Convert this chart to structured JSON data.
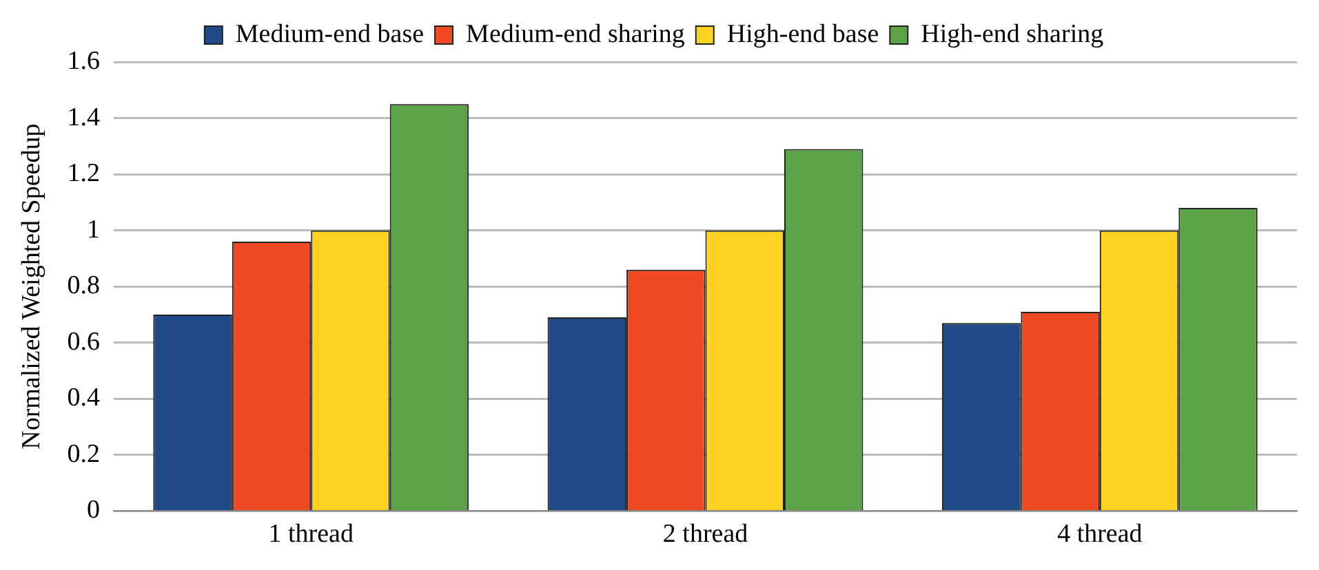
{
  "chart_data": {
    "type": "bar",
    "ylabel": "Normalized Weighted Speedup",
    "categories": [
      "1 thread",
      "2 thread",
      "4 thread"
    ],
    "series": [
      {
        "name": "Medium-end base",
        "color": "#1f4a87",
        "values": [
          0.7,
          0.69,
          0.67
        ]
      },
      {
        "name": "Medium-end sharing",
        "color": "#ef4a24",
        "values": [
          0.96,
          0.86,
          0.71
        ]
      },
      {
        "name": "High-end base",
        "color": "#fdd221",
        "values": [
          1.0,
          1.0,
          1.0
        ]
      },
      {
        "name": "High-end sharing",
        "color": "#5ba248",
        "values": [
          1.45,
          1.29,
          1.08
        ]
      }
    ],
    "ylim": [
      0,
      1.6
    ],
    "yticks": [
      0,
      0.2,
      0.4,
      0.6,
      0.8,
      1,
      1.2,
      1.4,
      1.6
    ],
    "grid": "y",
    "legend": "top"
  }
}
